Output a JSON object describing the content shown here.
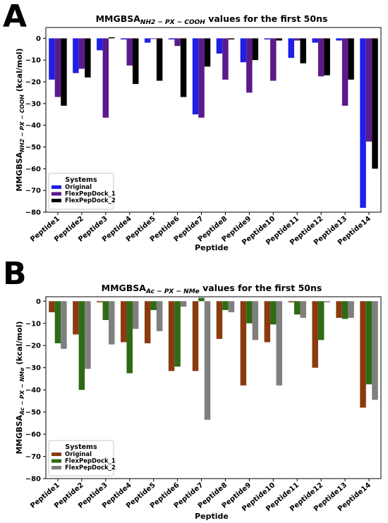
{
  "chart_data": [
    {
      "panel": "A",
      "type": "bar",
      "title_main": "MMGBSA",
      "title_sub": "NH2 − PX − COOH",
      "title_rest": " values for the first 50ns",
      "xlabel": "Peptide",
      "ylabel_main": "MMGBSA",
      "ylabel_sub": "NH2 − PX − COOH",
      "ylabel_rest": " (kcal/mol)",
      "ylim": [
        -80,
        5
      ],
      "yticks": [
        0,
        -10,
        -20,
        -30,
        -40,
        -50,
        -60,
        -70,
        -80
      ],
      "legend_title": "Systems",
      "legend_position": "bottom-left",
      "categories": [
        "Peptide1",
        "Peptide2",
        "Peptide3",
        "Peptide4",
        "Peptide5",
        "Peptide6",
        "Peptide7",
        "Peptide8",
        "Peptide9",
        "Peptide10",
        "Peptide11",
        "Peptide12",
        "Peptide13",
        "Peptide14"
      ],
      "series": [
        {
          "name": "Original",
          "color": "#1f1fe6",
          "values": [
            -19,
            -16,
            -5.5,
            -0.5,
            -2,
            -0.5,
            -35,
            -7,
            -11,
            -0.5,
            -9,
            -2,
            -1,
            -78
          ]
        },
        {
          "name": "FlexPepDock_1",
          "color": "#5b1a8c",
          "values": [
            -27,
            -14,
            -36.5,
            -12.5,
            -0.3,
            -3.5,
            -36.5,
            -19,
            -25,
            -19.5,
            -1,
            -17.5,
            -31,
            -47.5
          ]
        },
        {
          "name": "FlexPepDock_2",
          "color": "#000000",
          "values": [
            -31,
            -18,
            0.5,
            -21,
            -19.5,
            -27,
            -13,
            -0.5,
            -10,
            -1,
            -11.5,
            -17,
            -19,
            -60
          ]
        }
      ]
    },
    {
      "panel": "B",
      "type": "bar",
      "title_main": "MMGBSA",
      "title_sub": "Ac − PX − NMe",
      "title_rest": " values for the first 50ns",
      "xlabel": "Peptide",
      "ylabel_main": "MMGBSA",
      "ylabel_sub": "Ac − PX − NMe",
      "ylabel_rest": " (kcal/mol)",
      "ylim": [
        -80,
        2
      ],
      "yticks": [
        0,
        -10,
        -20,
        -30,
        -40,
        -50,
        -60,
        -70,
        -80
      ],
      "legend_title": "Systems",
      "legend_position": "bottom-left",
      "categories": [
        "Peptide1",
        "Peptide2",
        "Peptide3",
        "Peptide4",
        "Peptide5",
        "Peptide6",
        "Peptide7",
        "Peptide8",
        "Peptide9",
        "Peptide10",
        "Peptide11",
        "Peptide12",
        "Peptide13",
        "Peptide14"
      ],
      "series": [
        {
          "name": "Original",
          "color": "#8b3a0f",
          "values": [
            -5,
            -15,
            -0.5,
            -18.5,
            -19,
            -31.5,
            -31.5,
            -17,
            -38,
            -18.5,
            -0.5,
            -30,
            -7.5,
            -48
          ]
        },
        {
          "name": "FlexPepDock_1",
          "color": "#2e6b14",
          "values": [
            -19,
            -40,
            -8.5,
            -32.5,
            -4,
            -29.5,
            1.5,
            -4,
            -10,
            -10.5,
            -6,
            -17.5,
            -8,
            -37.5
          ]
        },
        {
          "name": "FlexPepDock_2",
          "color": "#7f7f7f",
          "values": [
            -21.5,
            -30.5,
            -19.5,
            -12.5,
            -13.5,
            -2.5,
            -53.5,
            -5,
            -17.5,
            -38,
            -7.5,
            -0.5,
            -7.5,
            -44.5
          ]
        }
      ]
    }
  ]
}
